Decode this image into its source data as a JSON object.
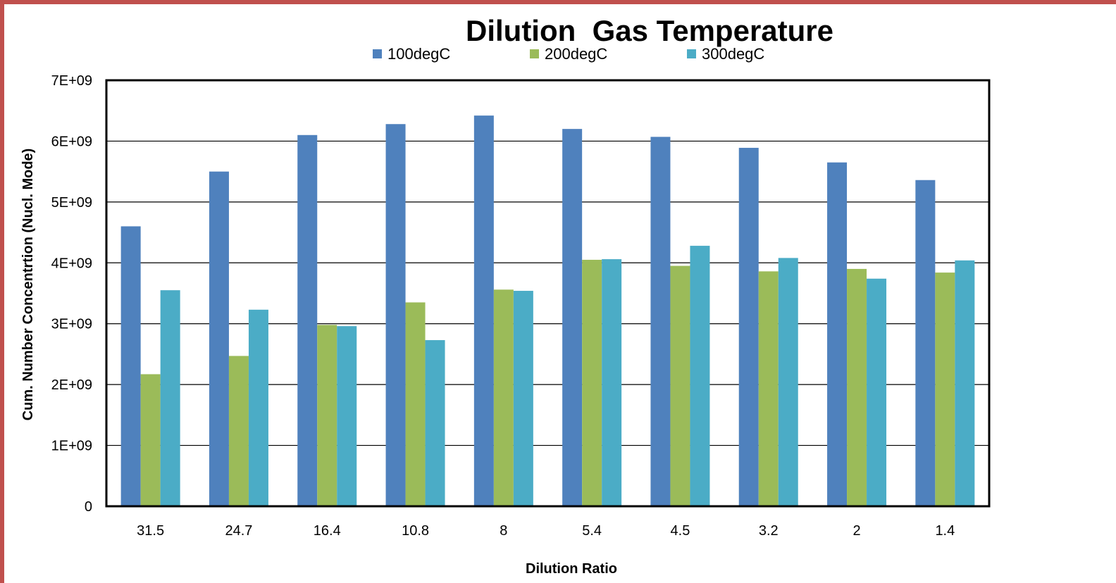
{
  "chart_data": {
    "type": "bar",
    "title": "Dilution  Gas Temperature",
    "xlabel": "Dilution Ratio",
    "ylabel": "Cum. Number Concentrtion (Nucl. Mode)",
    "ylim": [
      0,
      7000000000
    ],
    "yticks": [
      "0",
      "1E+09",
      "2E+09",
      "3E+09",
      "4E+09",
      "5E+09",
      "6E+09",
      "7E+09"
    ],
    "categories": [
      "31.5",
      "24.7",
      "16.4",
      "10.8",
      "8",
      "5.4",
      "4.5",
      "3.2",
      "2",
      "1.4"
    ],
    "series": [
      {
        "name": "100degC",
        "color": "#4f81bd",
        "values": [
          4600000000,
          5500000000,
          6100000000,
          6280000000,
          6420000000,
          6200000000,
          6070000000,
          5890000000,
          5650000000,
          5360000000
        ]
      },
      {
        "name": "200degC",
        "color": "#9bbb59",
        "values": [
          2170000000,
          2470000000,
          2980000000,
          3350000000,
          3560000000,
          4050000000,
          3950000000,
          3860000000,
          3900000000,
          3840000000
        ]
      },
      {
        "name": "300degC",
        "color": "#4bacc6",
        "values": [
          3550000000,
          3230000000,
          2960000000,
          2730000000,
          3540000000,
          4060000000,
          4280000000,
          4080000000,
          3740000000,
          4040000000
        ]
      }
    ],
    "grid": true,
    "legend_position": "top"
  }
}
